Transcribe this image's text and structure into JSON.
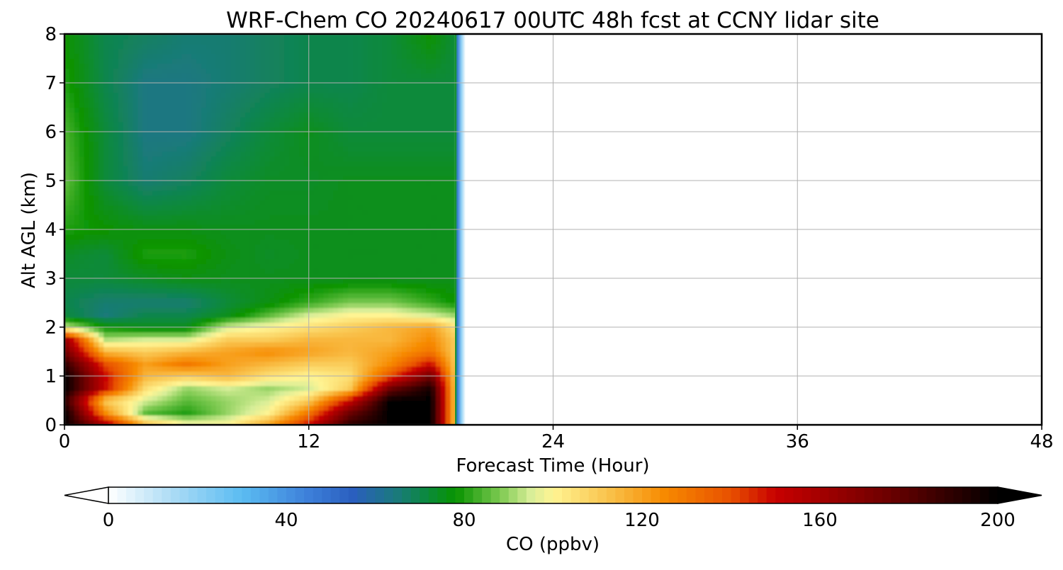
{
  "chart_data": {
    "type": "heatmap",
    "title": "WRF-Chem CO  20240617 00UTC 48h fcst at CCNY lidar site",
    "xlabel": "Forecast Time (Hour)",
    "ylabel": "Alt AGL (km)",
    "xlim": [
      0,
      48
    ],
    "ylim": [
      0,
      8
    ],
    "x_ticks": [
      0,
      12,
      24,
      36,
      48
    ],
    "y_ticks": [
      0,
      1,
      2,
      3,
      4,
      5,
      6,
      7,
      8
    ],
    "grid": true,
    "data_extent_x": [
      0,
      19.7
    ],
    "x": [
      0,
      2,
      4,
      6,
      8,
      10,
      12,
      14,
      16,
      18,
      19.2
    ],
    "y": [
      0,
      0.25,
      0.5,
      0.75,
      1,
      1.25,
      1.5,
      1.75,
      2,
      2.25,
      2.5,
      3,
      3.5,
      4,
      5,
      6,
      7,
      8
    ],
    "z": [
      [
        200,
        160,
        115,
        100,
        100,
        120,
        150,
        190,
        200,
        200,
        110
      ],
      [
        200,
        125,
        85,
        80,
        90,
        100,
        130,
        175,
        200,
        200,
        110
      ],
      [
        190,
        110,
        95,
        85,
        90,
        95,
        110,
        150,
        200,
        200,
        110
      ],
      [
        200,
        150,
        105,
        90,
        95,
        90,
        95,
        110,
        175,
        195,
        110
      ],
      [
        200,
        150,
        115,
        110,
        115,
        105,
        100,
        105,
        140,
        175,
        110
      ],
      [
        190,
        140,
        120,
        130,
        120,
        115,
        110,
        110,
        125,
        150,
        110
      ],
      [
        175,
        115,
        110,
        115,
        120,
        125,
        120,
        115,
        120,
        130,
        110
      ],
      [
        165,
        92,
        95,
        95,
        110,
        110,
        115,
        115,
        115,
        125,
        110
      ],
      [
        95,
        78,
        75,
        75,
        95,
        100,
        105,
        110,
        115,
        120,
        105
      ],
      [
        72,
        65,
        70,
        70,
        75,
        85,
        95,
        100,
        100,
        95,
        90
      ],
      [
        70,
        66,
        66,
        66,
        72,
        76,
        82,
        88,
        88,
        82,
        78
      ],
      [
        72,
        72,
        74,
        76,
        75,
        75,
        75,
        75,
        75,
        75,
        75
      ],
      [
        74,
        72,
        80,
        80,
        76,
        74,
        75,
        75,
        75,
        75,
        75
      ],
      [
        80,
        78,
        76,
        76,
        75,
        75,
        75,
        75,
        75,
        75,
        75
      ],
      [
        86,
        72,
        66,
        68,
        72,
        74,
        74,
        75,
        75,
        75,
        75
      ],
      [
        84,
        72,
        64,
        64,
        68,
        72,
        75,
        72,
        72,
        72,
        72
      ],
      [
        80,
        70,
        64,
        64,
        66,
        68,
        70,
        70,
        72,
        72,
        72
      ],
      [
        78,
        70,
        68,
        66,
        66,
        68,
        70,
        70,
        72,
        78,
        72
      ]
    ],
    "colorbar": {
      "label": "CO  (ppbv)",
      "min": 0,
      "max": 200,
      "ticks": [
        0,
        40,
        80,
        120,
        160,
        200
      ],
      "extend": "both",
      "stops": [
        {
          "v": 0,
          "c": "#ffffff"
        },
        {
          "v": 15,
          "c": "#a8daf5"
        },
        {
          "v": 30,
          "c": "#5bbcf2"
        },
        {
          "v": 45,
          "c": "#3d7fd9"
        },
        {
          "v": 55,
          "c": "#2a5fbf"
        },
        {
          "v": 65,
          "c": "#1a7a7a"
        },
        {
          "v": 72,
          "c": "#0a8a3a"
        },
        {
          "v": 78,
          "c": "#079300"
        },
        {
          "v": 88,
          "c": "#7cc950"
        },
        {
          "v": 95,
          "c": "#d8ee98"
        },
        {
          "v": 100,
          "c": "#fff493"
        },
        {
          "v": 112,
          "c": "#f9c44e"
        },
        {
          "v": 125,
          "c": "#f78a00"
        },
        {
          "v": 140,
          "c": "#e85000"
        },
        {
          "v": 150,
          "c": "#c80000"
        },
        {
          "v": 175,
          "c": "#6e0000"
        },
        {
          "v": 200,
          "c": "#000000"
        }
      ]
    }
  }
}
